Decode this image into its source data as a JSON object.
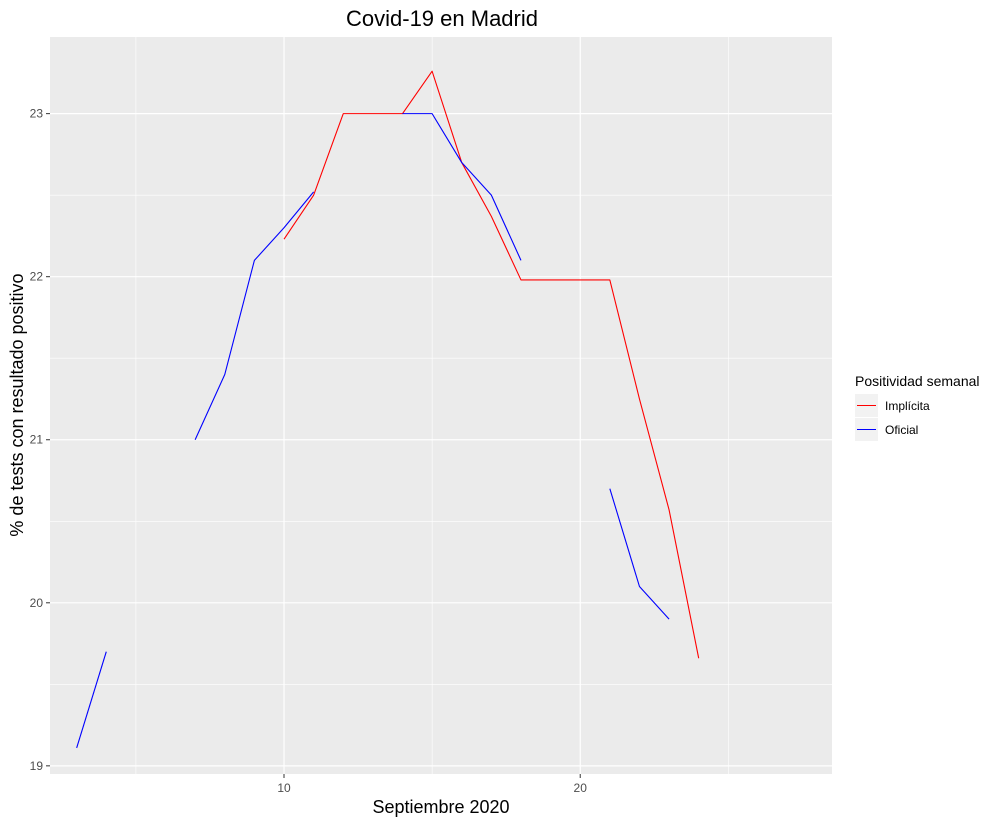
{
  "chart_data": {
    "type": "line",
    "title": "Covid-19 en Madrid",
    "xlabel": "Septiembre 2020",
    "ylabel": "% de tests con resultado positivo",
    "xlim": [
      2.1,
      28.5
    ],
    "ylim": [
      18.95,
      23.47
    ],
    "x_ticks": [
      10,
      20
    ],
    "x_tick_labels": [
      "10",
      "20"
    ],
    "x_minor_ticks": [
      5,
      15,
      25
    ],
    "y_ticks": [
      19,
      20,
      21,
      22,
      23
    ],
    "y_tick_labels": [
      "19",
      "20",
      "21",
      "22",
      "23"
    ],
    "y_minor_ticks": [
      19.5,
      20.5,
      21.5,
      22.5
    ],
    "grid": true,
    "legend": {
      "title": "Positividad semanal",
      "position": "right"
    },
    "series": [
      {
        "name": "Implícita",
        "color": "#ff0000",
        "segments": [
          [
            {
              "x": 10,
              "y": 22.23
            },
            {
              "x": 11,
              "y": 22.5
            },
            {
              "x": 12,
              "y": 23.0
            },
            {
              "x": 13,
              "y": 23.0
            },
            {
              "x": 14,
              "y": 23.0
            },
            {
              "x": 15,
              "y": 23.26
            },
            {
              "x": 16,
              "y": 22.7
            },
            {
              "x": 17,
              "y": 22.37
            },
            {
              "x": 18,
              "y": 21.98
            },
            {
              "x": 19,
              "y": 21.98
            },
            {
              "x": 20,
              "y": 21.98
            },
            {
              "x": 21,
              "y": 21.98
            },
            {
              "x": 22,
              "y": 21.25
            },
            {
              "x": 23,
              "y": 20.57
            },
            {
              "x": 24,
              "y": 19.66
            }
          ]
        ]
      },
      {
        "name": "Oficial",
        "color": "#0000ff",
        "segments": [
          [
            {
              "x": 3,
              "y": 19.11
            },
            {
              "x": 4,
              "y": 19.7
            }
          ],
          [
            {
              "x": 7,
              "y": 21.0
            },
            {
              "x": 8,
              "y": 21.4
            },
            {
              "x": 9,
              "y": 22.1
            },
            {
              "x": 10,
              "y": 22.3
            },
            {
              "x": 11,
              "y": 22.52
            }
          ],
          [
            {
              "x": 14,
              "y": 23.0
            },
            {
              "x": 15,
              "y": 23.0
            },
            {
              "x": 16,
              "y": 22.7
            },
            {
              "x": 17,
              "y": 22.5
            },
            {
              "x": 18,
              "y": 22.1
            }
          ],
          [
            {
              "x": 21,
              "y": 20.7
            },
            {
              "x": 22,
              "y": 20.1
            },
            {
              "x": 23,
              "y": 19.9
            }
          ]
        ]
      }
    ]
  }
}
